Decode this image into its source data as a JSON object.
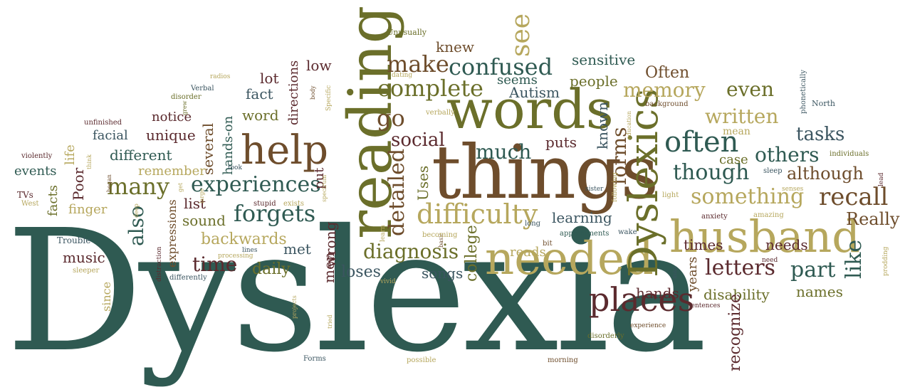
{
  "colors": {
    "teal": "#2f5a52",
    "olive": "#6b6f2a",
    "gold": "#b6a75d",
    "brown": "#6e4d2c",
    "maroon": "#5b2a2e",
    "slate": "#3b5560"
  },
  "words": [
    {
      "t": "Dyslexia",
      "c": "teal"
    },
    {
      "t": "things",
      "c": "brown"
    },
    {
      "t": "reading",
      "c": "olive"
    },
    {
      "t": "words",
      "c": "olive"
    },
    {
      "t": "needed",
      "c": "gold"
    },
    {
      "t": "husband",
      "c": "gold"
    },
    {
      "t": "Dyslexics",
      "c": "olive"
    },
    {
      "t": "help",
      "c": "brown"
    },
    {
      "t": "places",
      "c": "maroon"
    },
    {
      "t": "often",
      "c": "teal"
    },
    {
      "t": "difficulty",
      "c": "gold"
    },
    {
      "t": "confused",
      "c": "teal"
    },
    {
      "t": "complete",
      "c": "olive"
    },
    {
      "t": "make",
      "c": "brown"
    },
    {
      "t": "see",
      "c": "gold"
    },
    {
      "t": "knew",
      "c": "brown"
    },
    {
      "t": "Unusually",
      "c": "olive"
    },
    {
      "t": "experiences",
      "c": "teal"
    },
    {
      "t": "many",
      "c": "olive"
    },
    {
      "t": "forgets",
      "c": "teal"
    },
    {
      "t": "diagnosis",
      "c": "olive"
    },
    {
      "t": "detailed",
      "c": "brown"
    },
    {
      "t": "much",
      "c": "teal"
    },
    {
      "t": "social",
      "c": "maroon"
    },
    {
      "t": "go",
      "c": "brown"
    },
    {
      "t": "memory",
      "c": "gold"
    },
    {
      "t": "even",
      "c": "olive"
    },
    {
      "t": "written",
      "c": "gold"
    },
    {
      "t": "tasks",
      "c": "slate"
    },
    {
      "t": "others",
      "c": "teal"
    },
    {
      "t": "though",
      "c": "teal"
    },
    {
      "t": "something",
      "c": "gold"
    },
    {
      "t": "recall",
      "c": "brown"
    },
    {
      "t": "Really",
      "c": "brown"
    },
    {
      "t": "like",
      "c": "teal"
    },
    {
      "t": "letters",
      "c": "maroon"
    },
    {
      "t": "part",
      "c": "teal"
    },
    {
      "t": "although",
      "c": "brown"
    },
    {
      "t": "forms",
      "c": "brown"
    },
    {
      "t": "also",
      "c": "teal"
    },
    {
      "t": "time",
      "c": "maroon"
    },
    {
      "t": "backwards",
      "c": "gold"
    },
    {
      "t": "music",
      "c": "maroon"
    },
    {
      "t": "daily",
      "c": "olive"
    },
    {
      "t": "met",
      "c": "slate"
    },
    {
      "t": "men",
      "c": "maroon"
    },
    {
      "t": "wrong",
      "c": "maroon"
    },
    {
      "t": "loses",
      "c": "slate"
    },
    {
      "t": "songs",
      "c": "slate"
    },
    {
      "t": "college",
      "c": "olive"
    },
    {
      "t": "Uses",
      "c": "olive"
    },
    {
      "t": "reads",
      "c": "gold"
    },
    {
      "t": "learning",
      "c": "slate"
    },
    {
      "t": "hands",
      "c": "maroon"
    },
    {
      "t": "years",
      "c": "brown"
    },
    {
      "t": "disability",
      "c": "olive"
    },
    {
      "t": "names",
      "c": "olive"
    },
    {
      "t": "recognize",
      "c": "maroon"
    },
    {
      "t": "times",
      "c": "maroon"
    },
    {
      "t": "needs",
      "c": "maroon"
    },
    {
      "t": "Often",
      "c": "brown"
    },
    {
      "t": "sensitive",
      "c": "teal"
    },
    {
      "t": "people",
      "c": "olive"
    },
    {
      "t": "seems",
      "c": "teal"
    },
    {
      "t": "Autism",
      "c": "slate"
    },
    {
      "t": "known",
      "c": "slate"
    },
    {
      "t": "puts",
      "c": "maroon"
    },
    {
      "t": "case",
      "c": "olive"
    },
    {
      "t": "mean",
      "c": "gold"
    },
    {
      "t": "low",
      "c": "maroon"
    },
    {
      "t": "directions",
      "c": "maroon"
    },
    {
      "t": "lot",
      "c": "maroon"
    },
    {
      "t": "fact",
      "c": "slate"
    },
    {
      "t": "word",
      "c": "olive"
    },
    {
      "t": "notice",
      "c": "maroon"
    },
    {
      "t": "unique",
      "c": "maroon"
    },
    {
      "t": "several",
      "c": "brown"
    },
    {
      "t": "facial",
      "c": "slate"
    },
    {
      "t": "different",
      "c": "teal"
    },
    {
      "t": "remember",
      "c": "gold"
    },
    {
      "t": "events",
      "c": "teal"
    },
    {
      "t": "Poor",
      "c": "maroon"
    },
    {
      "t": "facts",
      "c": "olive"
    },
    {
      "t": "finger",
      "c": "gold"
    },
    {
      "t": "list",
      "c": "maroon"
    },
    {
      "t": "sound",
      "c": "olive"
    },
    {
      "t": "expressions",
      "c": "brown"
    },
    {
      "t": "hands-on",
      "c": "teal"
    },
    {
      "t": "put",
      "c": "maroon"
    },
    {
      "t": "life",
      "c": "gold"
    },
    {
      "t": "since",
      "c": "gold"
    },
    {
      "t": "Trouble",
      "c": "slate"
    },
    {
      "t": "sleeper",
      "c": "gold"
    },
    {
      "t": "Verbal",
      "c": "slate"
    },
    {
      "t": "disorder",
      "c": "olive"
    },
    {
      "t": "radios",
      "c": "gold"
    },
    {
      "t": "unfinished",
      "c": "maroon"
    },
    {
      "t": "violently",
      "c": "maroon"
    },
    {
      "t": "TVs",
      "c": "maroon"
    },
    {
      "t": "West",
      "c": "gold"
    },
    {
      "t": "grew",
      "c": "olive"
    },
    {
      "t": "think",
      "c": "gold"
    },
    {
      "t": "began",
      "c": "brown"
    },
    {
      "t": "took",
      "c": "slate"
    },
    {
      "t": "large",
      "c": "gold"
    },
    {
      "t": "deep",
      "c": "gold"
    },
    {
      "t": "get",
      "c": "gold"
    },
    {
      "t": "Specific",
      "c": "gold"
    },
    {
      "t": "body",
      "c": "brown"
    },
    {
      "t": "dating",
      "c": "gold"
    },
    {
      "t": "verbally",
      "c": "gold"
    },
    {
      "t": "education",
      "c": "gold"
    },
    {
      "t": "background",
      "c": "brown"
    },
    {
      "t": "phonetically",
      "c": "slate"
    },
    {
      "t": "North",
      "c": "slate"
    },
    {
      "t": "individuals",
      "c": "olive"
    },
    {
      "t": "lead",
      "c": "maroon"
    },
    {
      "t": "sleep",
      "c": "slate"
    },
    {
      "t": "senses",
      "c": "gold"
    },
    {
      "t": "light",
      "c": "gold"
    },
    {
      "t": "following",
      "c": "gold"
    },
    {
      "t": "sister",
      "c": "slate"
    },
    {
      "t": "anxiety",
      "c": "maroon"
    },
    {
      "t": "amazing",
      "c": "gold"
    },
    {
      "t": "prodding",
      "c": "gold"
    },
    {
      "t": "wake",
      "c": "slate"
    },
    {
      "t": "appointments",
      "c": "teal"
    },
    {
      "t": "bit",
      "c": "brown"
    },
    {
      "t": "long",
      "c": "slate"
    },
    {
      "t": "learn",
      "c": "gold"
    },
    {
      "t": "spectrum",
      "c": "gold"
    },
    {
      "t": "basic",
      "c": "brown"
    },
    {
      "t": "becoming",
      "c": "gold"
    },
    {
      "t": "lines",
      "c": "slate"
    },
    {
      "t": "stupid",
      "c": "maroon"
    },
    {
      "t": "exists",
      "c": "gold"
    },
    {
      "t": "distraction",
      "c": "maroon"
    },
    {
      "t": "processing",
      "c": "gold"
    },
    {
      "t": "differently",
      "c": "slate"
    },
    {
      "t": "vivid",
      "c": "gold"
    },
    {
      "t": "projects",
      "c": "gold"
    },
    {
      "t": "tried",
      "c": "gold"
    },
    {
      "t": "Forms",
      "c": "slate"
    },
    {
      "t": "possible",
      "c": "gold"
    },
    {
      "t": "morning",
      "c": "brown"
    },
    {
      "t": "disorderly",
      "c": "olive"
    },
    {
      "t": "experience",
      "c": "brown"
    },
    {
      "t": "sentences",
      "c": "maroon"
    },
    {
      "t": "map",
      "c": "slate"
    },
    {
      "t": "need",
      "c": "maroon"
    }
  ]
}
